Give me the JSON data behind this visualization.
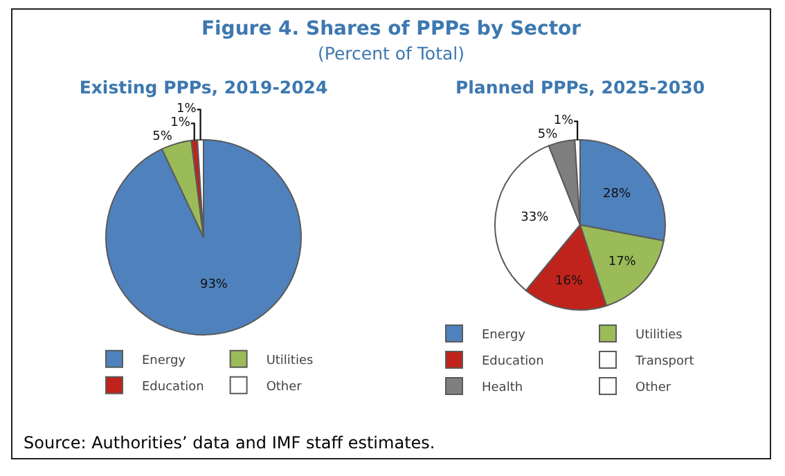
{
  "chart_data": [
    {
      "type": "other",
      "title": "Figure 4. Shares of PPPs by Sector",
      "subtitle": "(Percent of Total)",
      "annotations": [
        "Source: Authorities’ data and IMF staff estimates."
      ]
    },
    {
      "type": "pie",
      "title": "Existing PPPs, 2019-2024",
      "categories": [
        "Energy",
        "Utilities",
        "Education",
        "Other"
      ],
      "values": [
        93,
        5,
        1,
        1
      ],
      "colors": [
        "#4f81bd",
        "#9bbb59",
        "#c0231b",
        "#ffffff"
      ],
      "value_labels": [
        "93%",
        "5%",
        "1%",
        "1%"
      ],
      "legend": "bottom"
    },
    {
      "type": "pie",
      "title": "Planned PPPs, 2025-2030",
      "categories": [
        "Energy",
        "Utilities",
        "Education",
        "Transport",
        "Health",
        "Other"
      ],
      "values": [
        28,
        17,
        16,
        33,
        5,
        1
      ],
      "colors": [
        "#4f81bd",
        "#9bbb59",
        "#c0231b",
        "#ffffff",
        "#7f7f7f",
        "#ffffff"
      ],
      "value_labels": [
        "28%",
        "17%",
        "16%",
        "33%",
        "5%",
        "1%"
      ],
      "legend": "bottom"
    }
  ]
}
